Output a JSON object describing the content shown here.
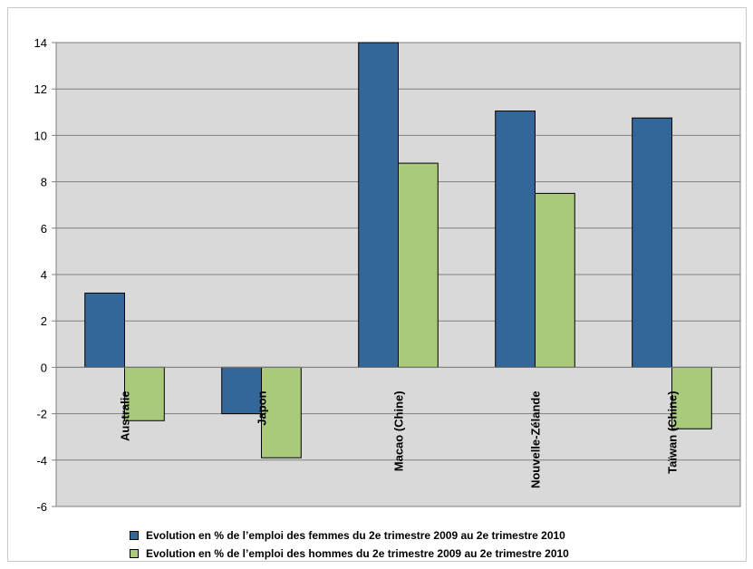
{
  "chart_data": {
    "type": "bar",
    "title": "",
    "xlabel": "",
    "ylabel": "",
    "categories": [
      "Australie",
      "Japon",
      "Macao (Chine)",
      "Nouvelle-Zélande",
      "Taïwan (Chine)"
    ],
    "series": [
      {
        "name": "Evolution en % de l’emploi des femmes du 2e trimestre 2009 au 2e trimestre 2010",
        "color": "#336699",
        "values": [
          3.2,
          -2.0,
          14.0,
          11.05,
          10.75
        ]
      },
      {
        "name": "Evolution en % de l’emploi des hommes du 2e trimestre 2009 au 2e trimestre 2010",
        "color": "#a9c97b",
        "values": [
          -2.3,
          -3.9,
          8.8,
          7.5,
          -2.65
        ]
      }
    ],
    "ylim": [
      -6,
      14
    ],
    "yticks": [
      14,
      12,
      10,
      8,
      6,
      4,
      2,
      0,
      -2,
      -4,
      -6
    ],
    "grid": true,
    "plot_background": "#d9d9d9",
    "legend_position": "bottom"
  }
}
